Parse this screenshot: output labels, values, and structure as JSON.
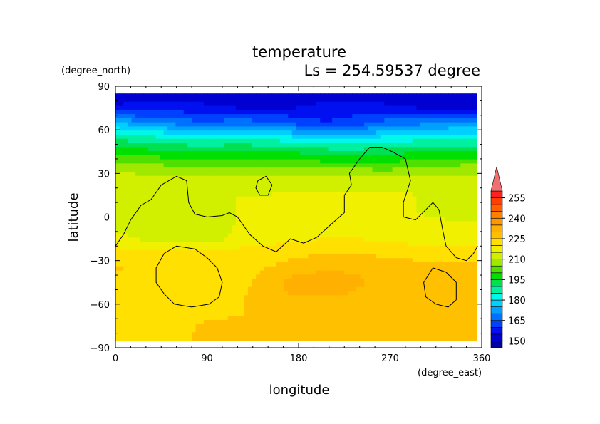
{
  "chart_data": {
    "type": "heatmap",
    "title": "temperature",
    "subtitle": "Ls = 254.59537 degree",
    "xlabel": "longitude",
    "ylabel": "latitude",
    "x_unit": "(degree_east)",
    "y_unit": "(degree_north)",
    "xlim": [
      0,
      360
    ],
    "ylim": [
      -90,
      90
    ],
    "x_ticks": [
      0,
      90,
      180,
      270,
      360
    ],
    "y_ticks": [
      -90,
      -60,
      -30,
      0,
      30,
      60,
      90
    ],
    "data_lon_range": [
      0,
      355
    ],
    "data_lat_range": [
      -85,
      85
    ],
    "colorbar": {
      "levels": [
        140,
        145,
        150,
        155,
        160,
        165,
        170,
        175,
        180,
        185,
        190,
        195,
        200,
        205,
        210,
        215,
        220,
        225,
        230,
        235,
        240,
        245,
        250,
        255,
        260
      ],
      "tick_labels": [
        150,
        165,
        180,
        195,
        210,
        225,
        240,
        255
      ],
      "colors": [
        "#0000a0",
        "#0000d0",
        "#0010f0",
        "#0040ff",
        "#0070ff",
        "#00a0ff",
        "#00d0ff",
        "#00f8e8",
        "#00f0a0",
        "#00e050",
        "#00e000",
        "#50e000",
        "#a0e800",
        "#d0f000",
        "#f0f000",
        "#ffe000",
        "#ffc000",
        "#ffb000",
        "#ff9800",
        "#ff8000",
        "#ff6000",
        "#ff4000",
        "#ff2020"
      ],
      "overflow_color": "#f07070"
    },
    "lat_rows": [
      85,
      75,
      65,
      55,
      45,
      35,
      25,
      15,
      5,
      -5,
      -15,
      -25,
      -35,
      -45,
      -55,
      -65,
      -75,
      -85
    ],
    "lon_cols": [
      0,
      30,
      60,
      90,
      120,
      150,
      180,
      210,
      240,
      270,
      300,
      330,
      355
    ],
    "temperature": [
      [
        152,
        152,
        152,
        152,
        152,
        152,
        152,
        152,
        152,
        152,
        152,
        152,
        152
      ],
      [
        156,
        157,
        158,
        156,
        155,
        155,
        155,
        157,
        158,
        156,
        155,
        155,
        155
      ],
      [
        175,
        170,
        168,
        165,
        168,
        166,
        163,
        160,
        162,
        167,
        168,
        170,
        172
      ],
      [
        188,
        186,
        184,
        182,
        184,
        183,
        180,
        176,
        177,
        181,
        182,
        182,
        183
      ],
      [
        198,
        197,
        196,
        195,
        196,
        195,
        194,
        193,
        192,
        194,
        194,
        195,
        196
      ],
      [
        208,
        206,
        205,
        204,
        205,
        204,
        204,
        203,
        203,
        202,
        204,
        205,
        206
      ],
      [
        213,
        213,
        213,
        212,
        212,
        212,
        213,
        213,
        213,
        213,
        213,
        213,
        213
      ],
      [
        214,
        214,
        212,
        215,
        215,
        215,
        216,
        216,
        216,
        216,
        215,
        215,
        214
      ],
      [
        212,
        213,
        213,
        214,
        215,
        216,
        217,
        216,
        216,
        216,
        215,
        213,
        213
      ],
      [
        212,
        212,
        213,
        214,
        215,
        216,
        217,
        218,
        217,
        216,
        216,
        216,
        216
      ],
      [
        217,
        214,
        212,
        212,
        216,
        218,
        219,
        220,
        220,
        219,
        218,
        218,
        217
      ],
      [
        222,
        222,
        222,
        222,
        222,
        223,
        224,
        225,
        225,
        224,
        223,
        222,
        222
      ],
      [
        226,
        223,
        223,
        223,
        222,
        225,
        227,
        229,
        229,
        227,
        227,
        227,
        226
      ],
      [
        223,
        223,
        223,
        223,
        223,
        227,
        233,
        234,
        231,
        228,
        226,
        227,
        227
      ],
      [
        223,
        223,
        223,
        223,
        224,
        227,
        230,
        230,
        229,
        227,
        227,
        227,
        227
      ],
      [
        223,
        223,
        223,
        223,
        224,
        227,
        228,
        228,
        228,
        227,
        227,
        226,
        227
      ],
      [
        223,
        223,
        223,
        226,
        227,
        227,
        227,
        227,
        227,
        227,
        227,
        227,
        227
      ],
      [
        222,
        222,
        223,
        227,
        227,
        227,
        227,
        227,
        227,
        227,
        227,
        227,
        227
      ]
    ],
    "contours": [
      [
        [
          0,
          -20
        ],
        [
          8,
          -12
        ],
        [
          15,
          -2
        ],
        [
          25,
          8
        ],
        [
          35,
          12
        ],
        [
          45,
          22
        ],
        [
          60,
          28
        ],
        [
          70,
          25
        ],
        [
          72,
          10
        ],
        [
          78,
          2
        ],
        [
          90,
          0
        ],
        [
          105,
          1
        ],
        [
          112,
          3
        ],
        [
          120,
          0
        ],
        [
          132,
          -12
        ],
        [
          145,
          -20
        ],
        [
          158,
          -24
        ],
        [
          172,
          -15
        ],
        [
          185,
          -18
        ],
        [
          198,
          -14
        ],
        [
          212,
          -5
        ],
        [
          225,
          3
        ],
        [
          225,
          15
        ],
        [
          232,
          22
        ],
        [
          230,
          30
        ],
        [
          240,
          40
        ],
        [
          250,
          48
        ],
        [
          262,
          48
        ],
        [
          272,
          45
        ],
        [
          285,
          40
        ],
        [
          290,
          25
        ],
        [
          283,
          10
        ],
        [
          283,
          0
        ],
        [
          295,
          -2
        ],
        [
          305,
          5
        ],
        [
          312,
          10
        ],
        [
          318,
          5
        ],
        [
          322,
          -10
        ],
        [
          325,
          -20
        ],
        [
          335,
          -28
        ],
        [
          345,
          -30
        ],
        [
          352,
          -25
        ],
        [
          356,
          -20
        ]
      ],
      [
        [
          48,
          -25
        ],
        [
          60,
          -20
        ],
        [
          78,
          -22
        ],
        [
          90,
          -28
        ],
        [
          100,
          -35
        ],
        [
          105,
          -45
        ],
        [
          102,
          -55
        ],
        [
          92,
          -60
        ],
        [
          75,
          -62
        ],
        [
          58,
          -60
        ],
        [
          48,
          -53
        ],
        [
          40,
          -45
        ],
        [
          40,
          -35
        ],
        [
          48,
          -25
        ]
      ],
      [
        [
          140,
          25
        ],
        [
          148,
          28
        ],
        [
          154,
          22
        ],
        [
          150,
          15
        ],
        [
          142,
          15
        ],
        [
          138,
          20
        ],
        [
          140,
          25
        ]
      ],
      [
        [
          312,
          -35
        ],
        [
          325,
          -38
        ],
        [
          335,
          -45
        ],
        [
          335,
          -57
        ],
        [
          327,
          -62
        ],
        [
          315,
          -60
        ],
        [
          305,
          -55
        ],
        [
          303,
          -45
        ],
        [
          312,
          -35
        ]
      ]
    ]
  }
}
